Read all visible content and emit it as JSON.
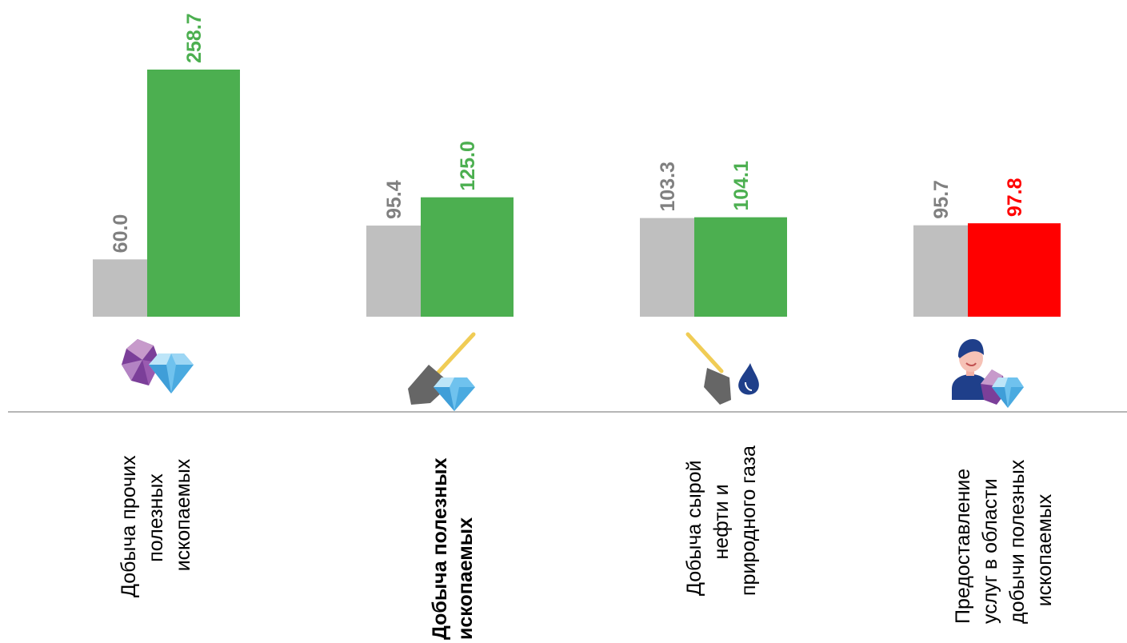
{
  "chart_data": {
    "type": "bar",
    "categories": [
      [
        "Добыча прочих",
        "полезных",
        "ископаемых"
      ],
      [
        "Добыча полезных",
        "ископаемых"
      ],
      [
        "Добыча сырой",
        "нефти и",
        "природного газа"
      ],
      [
        "Предоставление",
        "услуг в области",
        "добычи полезных",
        "ископаемых"
      ]
    ],
    "category_icons": [
      "gem-crystals-icon",
      "shovel-diamond-icon",
      "shovel-oil-drop-icon",
      "miner-gems-icon"
    ],
    "series": [
      {
        "values": [
          60.0,
          95.4,
          103.3,
          95.7
        ],
        "color": "#BFBFBF",
        "label_color": "#808080"
      },
      {
        "values": [
          258.7,
          125.0,
          104.1,
          97.8
        ],
        "colors": [
          "#4CAF50",
          "#4CAF50",
          "#4CAF50",
          "#FF0000"
        ],
        "label_colors": [
          "#4CAF50",
          "#4CAF50",
          "#4CAF50",
          "#FF0000"
        ]
      }
    ],
    "value_labels": [
      [
        "60.0",
        "95.4",
        "103.3",
        "95.7"
      ],
      [
        "258.7",
        "125.0",
        "104.1",
        "97.8"
      ]
    ],
    "ylim": [
      0,
      265
    ],
    "grid": false,
    "legend": "none",
    "title": "",
    "xlabel": "",
    "ylabel": ""
  }
}
